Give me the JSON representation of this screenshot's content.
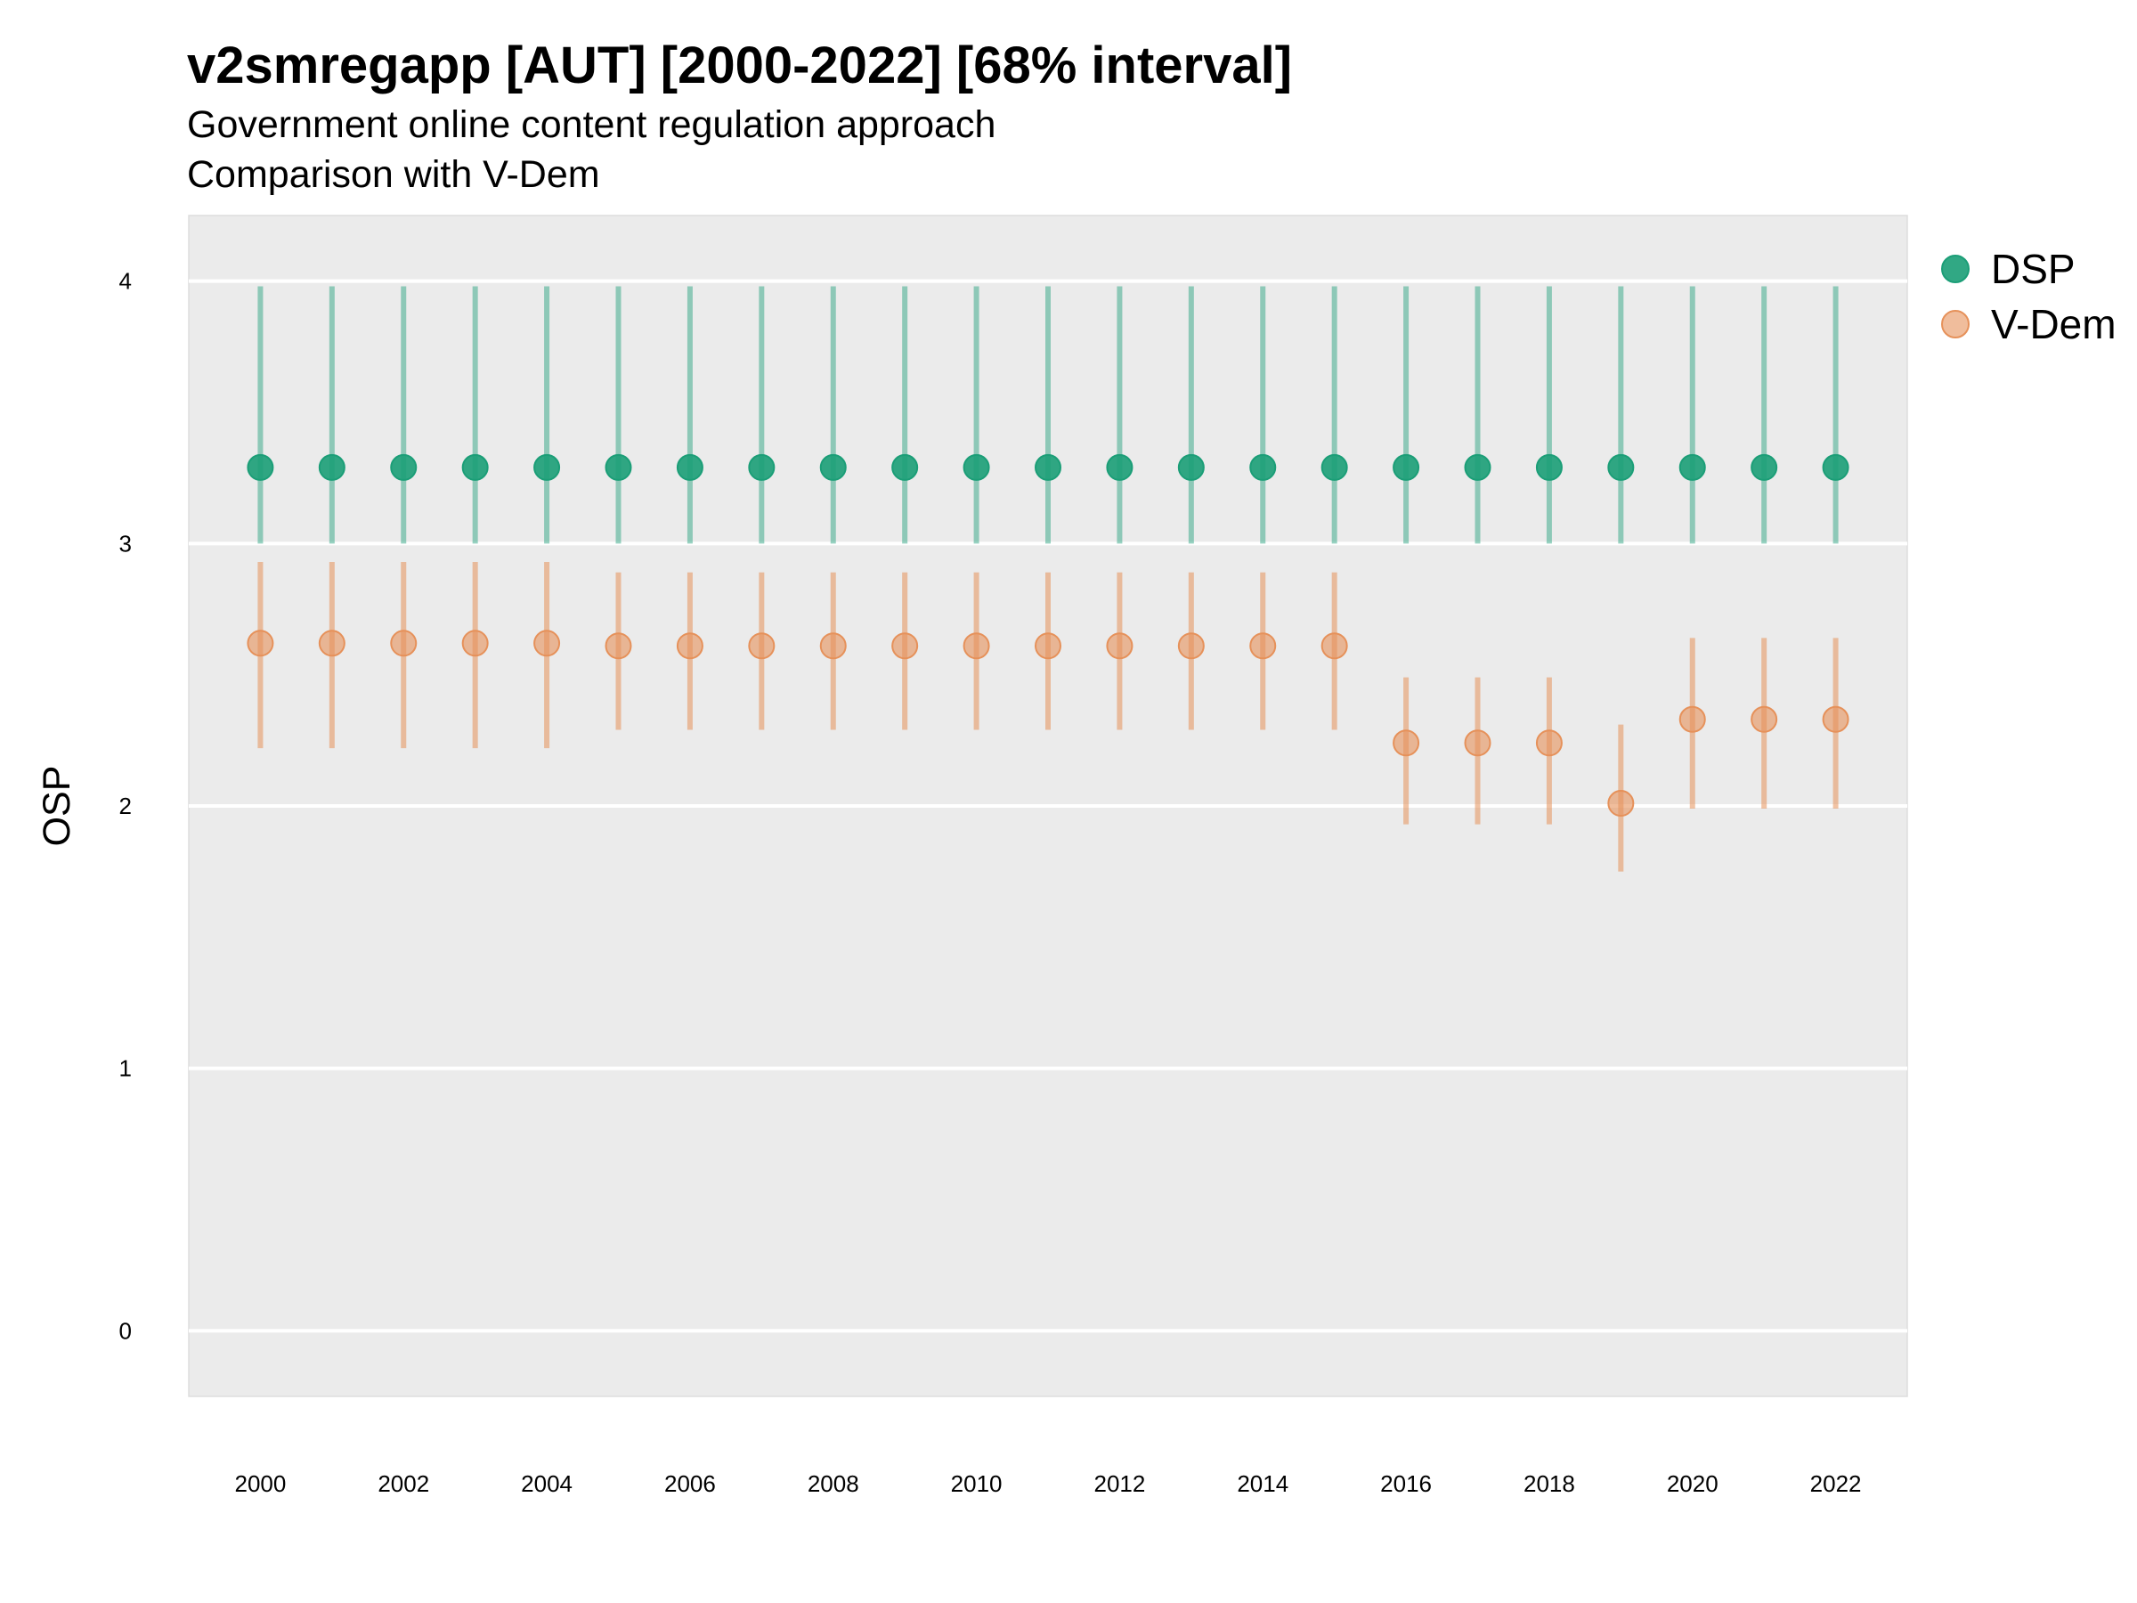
{
  "colors": {
    "panel_bg": "#ebebeb",
    "grid": "#ffffff",
    "dsp": "#1b9e77",
    "vdem": "#e6915a"
  },
  "chart_data": {
    "type": "scatter",
    "title": "v2smregapp [AUT] [2000-2022] [68% interval]",
    "subtitle": [
      "Government online content regulation approach",
      "Comparison with V-Dem"
    ],
    "xlabel": "",
    "ylabel": "OSP",
    "ylim": [
      -0.25,
      4.25
    ],
    "xlim": [
      1999,
      2023
    ],
    "yticks": [
      0,
      1,
      2,
      3,
      4
    ],
    "xticks": [
      2000,
      2002,
      2004,
      2006,
      2008,
      2010,
      2012,
      2014,
      2016,
      2018,
      2020,
      2022
    ],
    "grid": "horizontal major lines",
    "legend_position": "right-top",
    "x": [
      2000,
      2001,
      2002,
      2003,
      2004,
      2005,
      2006,
      2007,
      2008,
      2009,
      2010,
      2011,
      2012,
      2013,
      2014,
      2015,
      2016,
      2017,
      2018,
      2019,
      2020,
      2021,
      2022
    ],
    "series": [
      {
        "name": "DSP",
        "color": "#1b9e77",
        "values": [
          3.29,
          3.29,
          3.29,
          3.29,
          3.29,
          3.29,
          3.29,
          3.29,
          3.29,
          3.29,
          3.29,
          3.29,
          3.29,
          3.29,
          3.29,
          3.29,
          3.29,
          3.29,
          3.29,
          3.29,
          3.29,
          3.29,
          3.29
        ],
        "lower": [
          3.0,
          3.0,
          3.0,
          3.0,
          3.0,
          3.0,
          3.0,
          3.0,
          3.0,
          3.0,
          3.0,
          3.0,
          3.0,
          3.0,
          3.0,
          3.0,
          3.0,
          3.0,
          3.0,
          3.0,
          3.0,
          3.0,
          3.0
        ],
        "upper": [
          3.98,
          3.98,
          3.98,
          3.98,
          3.98,
          3.98,
          3.98,
          3.98,
          3.98,
          3.98,
          3.98,
          3.98,
          3.98,
          3.98,
          3.98,
          3.98,
          3.98,
          3.98,
          3.98,
          3.98,
          3.98,
          3.98,
          3.98
        ]
      },
      {
        "name": "V-Dem",
        "color": "#e6915a",
        "values": [
          2.62,
          2.62,
          2.62,
          2.62,
          2.62,
          2.61,
          2.61,
          2.61,
          2.61,
          2.61,
          2.61,
          2.61,
          2.61,
          2.61,
          2.61,
          2.61,
          2.24,
          2.24,
          2.24,
          2.01,
          2.33,
          2.33,
          2.33
        ],
        "lower": [
          2.22,
          2.22,
          2.22,
          2.22,
          2.22,
          2.29,
          2.29,
          2.29,
          2.29,
          2.29,
          2.29,
          2.29,
          2.29,
          2.29,
          2.29,
          2.29,
          1.93,
          1.93,
          1.93,
          1.75,
          1.99,
          1.99,
          1.99
        ],
        "upper": [
          2.93,
          2.93,
          2.93,
          2.93,
          2.93,
          2.89,
          2.89,
          2.89,
          2.89,
          2.89,
          2.89,
          2.89,
          2.89,
          2.89,
          2.89,
          2.89,
          2.49,
          2.49,
          2.49,
          2.31,
          2.64,
          2.64,
          2.64
        ]
      }
    ]
  }
}
